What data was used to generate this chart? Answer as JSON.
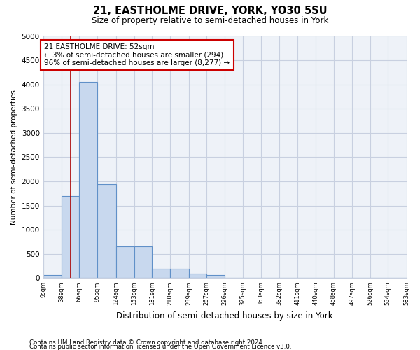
{
  "title1": "21, EASTHOLME DRIVE, YORK, YO30 5SU",
  "title2": "Size of property relative to semi-detached houses in York",
  "xlabel": "Distribution of semi-detached houses by size in York",
  "ylabel": "Number of semi-detached properties",
  "annotation_title": "21 EASTHOLME DRIVE: 52sqm",
  "annotation_line1": "← 3% of semi-detached houses are smaller (294)",
  "annotation_line2": "96% of semi-detached houses are larger (8,277) →",
  "footer1": "Contains HM Land Registry data © Crown copyright and database right 2024.",
  "footer2": "Contains public sector information licensed under the Open Government Licence v3.0.",
  "property_size": 52,
  "bin_edges": [
    9,
    38,
    66,
    95,
    124,
    153,
    181,
    210,
    239,
    267,
    296,
    325,
    353,
    382,
    411,
    440,
    468,
    497,
    526,
    554,
    583
  ],
  "bin_labels": [
    "9sqm",
    "38sqm",
    "66sqm",
    "95sqm",
    "124sqm",
    "153sqm",
    "181sqm",
    "210sqm",
    "239sqm",
    "267sqm",
    "296sqm",
    "325sqm",
    "353sqm",
    "382sqm",
    "411sqm",
    "440sqm",
    "468sqm",
    "497sqm",
    "526sqm",
    "554sqm",
    "583sqm"
  ],
  "bar_heights": [
    60,
    1700,
    4050,
    1950,
    650,
    650,
    200,
    200,
    90,
    60,
    0,
    0,
    0,
    0,
    0,
    0,
    0,
    0,
    0,
    0
  ],
  "bar_color": "#c8d8ee",
  "bar_edge_color": "#6090c8",
  "red_line_color": "#aa0000",
  "annotation_box_color": "#cc0000",
  "grid_color": "#c8d0e0",
  "bg_plot_color": "#eef2f8",
  "ylim": [
    0,
    5000
  ],
  "yticks": [
    0,
    500,
    1000,
    1500,
    2000,
    2500,
    3000,
    3500,
    4000,
    4500,
    5000
  ],
  "background_color": "#ffffff"
}
